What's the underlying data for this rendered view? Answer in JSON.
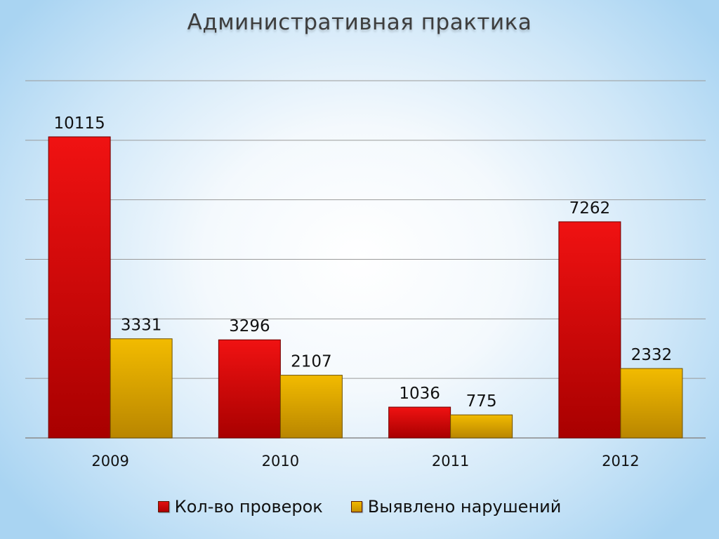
{
  "chart_data": {
    "type": "bar",
    "title": "Административная практика",
    "categories": [
      "2009",
      "2010",
      "2011",
      "2012"
    ],
    "series": [
      {
        "name": "Кол-во проверок",
        "values": [
          10115,
          3296,
          1036,
          7262
        ],
        "color": "#d80808"
      },
      {
        "name": "Выявлено нарушений",
        "values": [
          3331,
          2107,
          775,
          2332
        ],
        "color": "#e0a800"
      }
    ],
    "ylim": [
      0,
      12000
    ],
    "grid": true,
    "legend": "bottom"
  }
}
